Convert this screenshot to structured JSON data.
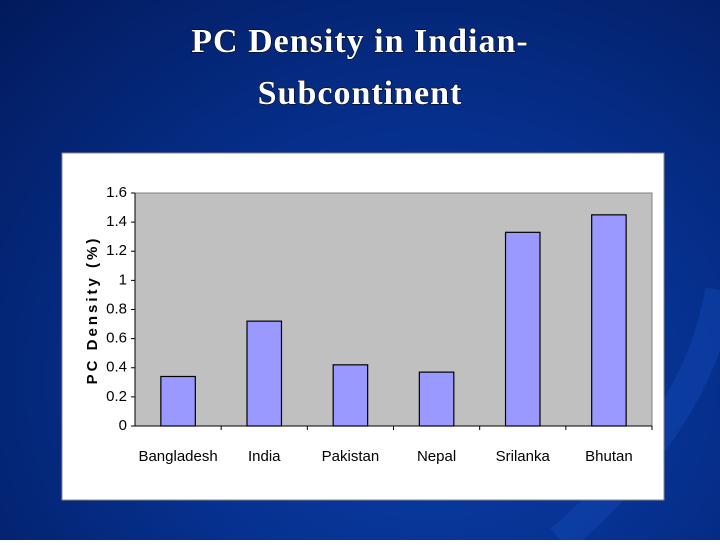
{
  "chart_data": {
    "type": "bar",
    "title_lines": [
      "PC Density in Indian-",
      "Subcontinent"
    ],
    "y_label": "PC Density (%)",
    "categories": [
      "Bangladesh",
      "India",
      "Pakistan",
      "Nepal",
      "Srilanka",
      "Bhutan"
    ],
    "values": [
      0.34,
      0.72,
      0.42,
      0.37,
      1.33,
      1.45
    ],
    "color": "#9999ff",
    "ylim": [
      0,
      1.6
    ],
    "yticks": [
      0,
      0.2,
      0.4,
      0.6,
      0.8,
      1,
      1.2,
      1.4,
      1.6
    ],
    "grid": false
  }
}
